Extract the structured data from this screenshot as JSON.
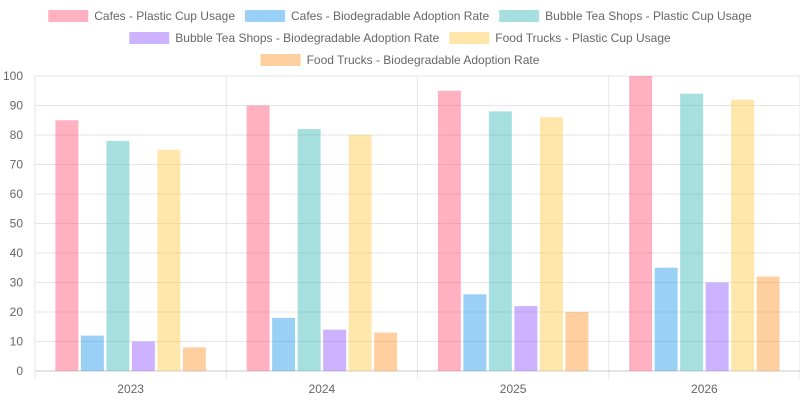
{
  "chart_data": {
    "type": "bar",
    "categories": [
      "2023",
      "2024",
      "2025",
      "2026"
    ],
    "series": [
      {
        "name": "Cafes - Plastic Cup Usage",
        "values": [
          85,
          90,
          95,
          100
        ],
        "color": "#ff6384"
      },
      {
        "name": "Cafes - Biodegradable Adoption Rate",
        "values": [
          12,
          18,
          26,
          35
        ],
        "color": "#36a2eb"
      },
      {
        "name": "Bubble Tea Shops - Plastic Cup Usage",
        "values": [
          78,
          82,
          88,
          94
        ],
        "color": "#4bc0c0"
      },
      {
        "name": "Bubble Tea Shops - Biodegradable Adoption Rate",
        "values": [
          10,
          14,
          22,
          30
        ],
        "color": "#9966ff"
      },
      {
        "name": "Food Trucks - Plastic Cup Usage",
        "values": [
          75,
          80,
          86,
          92
        ],
        "color": "#ffcd56"
      },
      {
        "name": "Food Trucks - Biodegradable Adoption Rate",
        "values": [
          8,
          13,
          20,
          32
        ],
        "color": "#ff9f40"
      }
    ],
    "ylim": [
      0,
      100
    ],
    "yticks": [
      "0",
      "10",
      "20",
      "30",
      "40",
      "50",
      "60",
      "70",
      "80",
      "90",
      "100"
    ],
    "xlabel": "",
    "ylabel": "",
    "grid": true,
    "legend_position": "top"
  }
}
